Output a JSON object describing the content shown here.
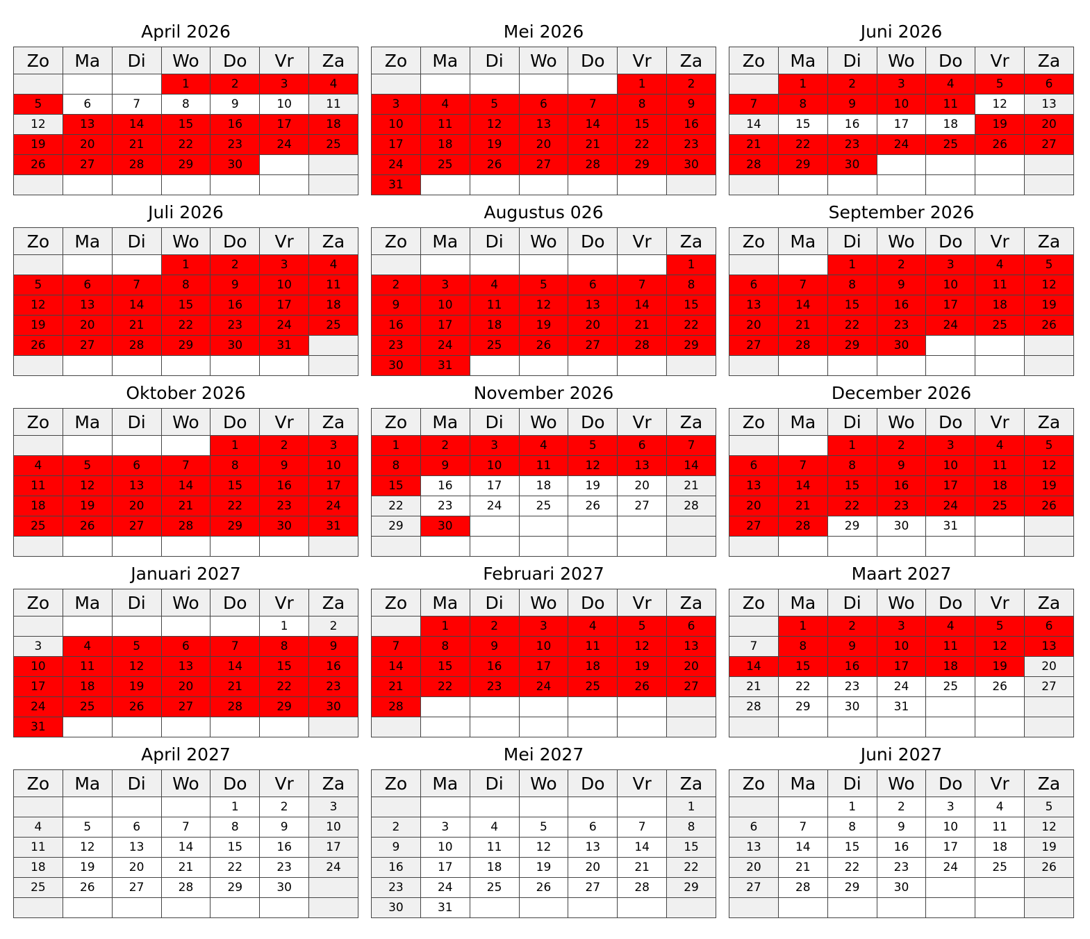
{
  "weekdays": [
    "Zo",
    "Ma",
    "Di",
    "Wo",
    "Do",
    "Vr",
    "Za"
  ],
  "colors": {
    "highlight": "#ff0000",
    "weekend": "#f0f0f0",
    "header": "#f0f0f0"
  },
  "months": [
    {
      "title": "April 2026",
      "start": 3,
      "days": 30,
      "highlight": [
        [
          1,
          5
        ],
        [
          13,
          30
        ]
      ]
    },
    {
      "title": "Mei 2026",
      "start": 5,
      "days": 31,
      "highlight": [
        [
          1,
          31
        ]
      ]
    },
    {
      "title": "Juni 2026",
      "start": 1,
      "days": 30,
      "highlight": [
        [
          1,
          11
        ],
        [
          19,
          30
        ]
      ]
    },
    {
      "title": "Juli 2026",
      "start": 3,
      "days": 31,
      "highlight": [
        [
          1,
          31
        ]
      ]
    },
    {
      "title": "Augustus 026",
      "start": 6,
      "days": 31,
      "highlight": [
        [
          1,
          31
        ]
      ]
    },
    {
      "title": "September 2026",
      "start": 2,
      "days": 30,
      "highlight": [
        [
          1,
          30
        ]
      ]
    },
    {
      "title": "Oktober 2026",
      "start": 4,
      "days": 31,
      "highlight": [
        [
          1,
          31
        ]
      ]
    },
    {
      "title": "November 2026",
      "start": 0,
      "days": 30,
      "highlight": [
        [
          1,
          15
        ],
        [
          30,
          30
        ]
      ]
    },
    {
      "title": "December 2026",
      "start": 2,
      "days": 31,
      "highlight": [
        [
          1,
          28
        ]
      ]
    },
    {
      "title": "Januari 2027",
      "start": 5,
      "days": 31,
      "highlight": [
        [
          4,
          31
        ]
      ]
    },
    {
      "title": "Februari 2027",
      "start": 1,
      "days": 28,
      "highlight": [
        [
          1,
          28
        ]
      ]
    },
    {
      "title": "Maart 2027",
      "start": 1,
      "days": 31,
      "highlight": [
        [
          1,
          6
        ],
        [
          8,
          19
        ]
      ]
    },
    {
      "title": "April 2027",
      "start": 4,
      "days": 30,
      "highlight": []
    },
    {
      "title": "Mei 2027",
      "start": 6,
      "days": 31,
      "highlight": []
    },
    {
      "title": "Juni 2027",
      "start": 2,
      "days": 30,
      "highlight": []
    }
  ]
}
